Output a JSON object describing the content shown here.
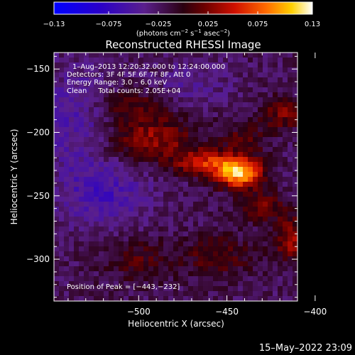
{
  "chart_data": {
    "type": "heatmap",
    "title": "Reconstructed RHESSI Image",
    "xlabel": "Heliocentric X (arcsec)",
    "ylabel": "Heliocentric Y (arcsec)",
    "xlim": [
      -548,
      -410
    ],
    "ylim": [
      -333,
      -137
    ],
    "x_ticks": [
      -500,
      -450,
      -400
    ],
    "y_ticks": [
      -150,
      -200,
      -250,
      -300
    ],
    "x_tick_labels": [
      "−500",
      "−450",
      "−400"
    ],
    "y_tick_labels": [
      "−150",
      "−200",
      "−250",
      "−300"
    ],
    "colorbar": {
      "range": [
        -0.13,
        0.13
      ],
      "ticks": [
        -0.13,
        -0.075,
        -0.025,
        0.025,
        0.075,
        0.13
      ],
      "tick_labels": [
        "−0.13",
        "−0.075",
        "−0.025",
        "0.025",
        "0.075",
        "0.13"
      ],
      "unit_label": "(photons cm",
      "unit_sup1": "−2",
      "unit_mid": " s",
      "unit_sup2": "−1",
      "unit_mid2": " asec",
      "unit_sup3": "−2",
      "unit_end": ")"
    },
    "annotations": [
      "1–Aug–2013 12:20:32.000 to 12:24:00.000",
      "Detectors: 3F 4F 5F 6F 7F 8F, Att 0",
      "Energy Range: 3.0 – 6.0 keV",
      "Clean     Total counts: 2.05E+04"
    ],
    "peak_label": "Position of Peak = [−443,−232]",
    "peak": {
      "x": -443,
      "y": -232,
      "value": 0.13
    },
    "sources": [
      {
        "x": -443,
        "y": -232,
        "amp": 0.13,
        "sx": 9,
        "sy": 8
      },
      {
        "x": -462,
        "y": -224,
        "amp": 0.07,
        "sx": 12,
        "sy": 7
      },
      {
        "x": -493,
        "y": -206,
        "amp": 0.055,
        "sx": 18,
        "sy": 12
      },
      {
        "x": -505,
        "y": -180,
        "amp": 0.035,
        "sx": 14,
        "sy": 10
      },
      {
        "x": -418,
        "y": -185,
        "amp": 0.045,
        "sx": 8,
        "sy": 9
      },
      {
        "x": -430,
        "y": -258,
        "amp": 0.045,
        "sx": 10,
        "sy": 8
      },
      {
        "x": -412,
        "y": -285,
        "amp": 0.06,
        "sx": 8,
        "sy": 12
      },
      {
        "x": -455,
        "y": -298,
        "amp": 0.035,
        "sx": 14,
        "sy": 12
      },
      {
        "x": -500,
        "y": -300,
        "amp": 0.03,
        "sx": 14,
        "sy": 12
      },
      {
        "x": -535,
        "y": -190,
        "amp": -0.03,
        "sx": 16,
        "sy": 30
      },
      {
        "x": -520,
        "y": -250,
        "amp": -0.035,
        "sx": 18,
        "sy": 18
      },
      {
        "x": -470,
        "y": -160,
        "amp": -0.02,
        "sx": 16,
        "sy": 12
      },
      {
        "x": -440,
        "y": -205,
        "amp": 0.03,
        "sx": 10,
        "sy": 10
      }
    ]
  },
  "footer_timestamp": "15–May–2022 23:09"
}
